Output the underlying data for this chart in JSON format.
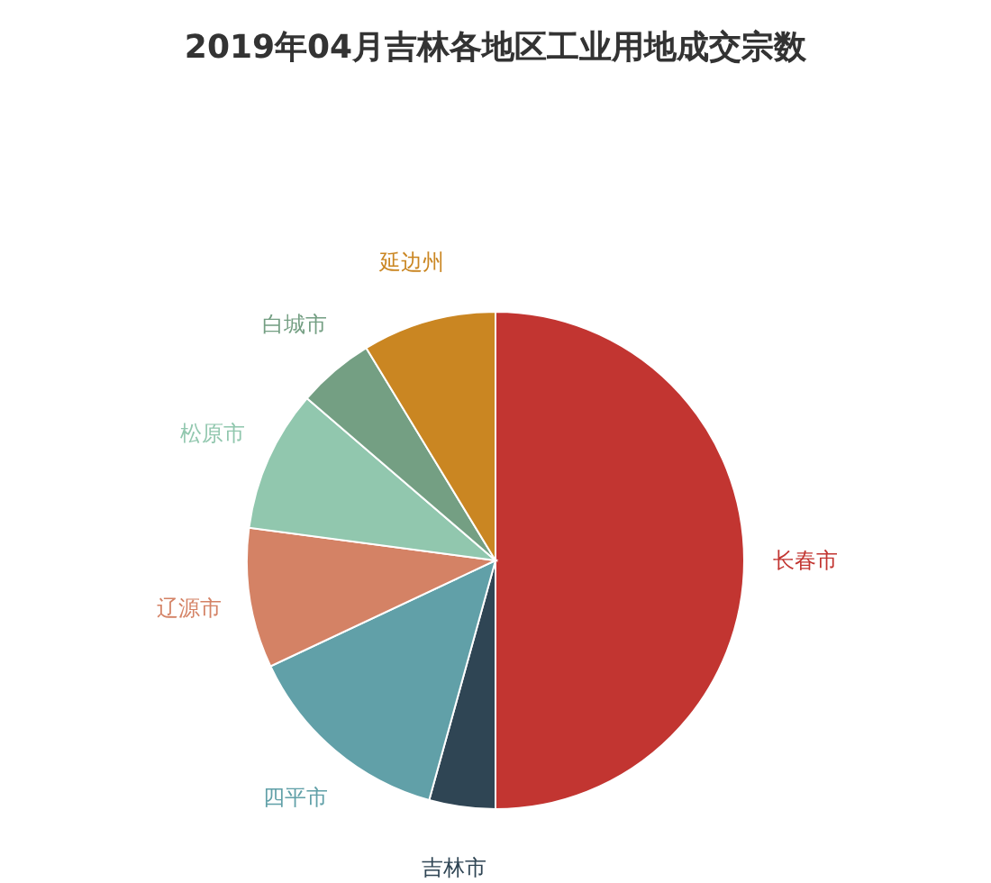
{
  "chart_data": {
    "type": "pie",
    "title": "2019年04月吉林各地区工业用地成交宗数",
    "categories": [
      "长春市",
      "吉林市",
      "四平市",
      "辽源市",
      "松原市",
      "白城市",
      "延边州"
    ],
    "values": [
      50,
      4.3,
      13.7,
      9.1,
      9.2,
      5,
      8.7
    ],
    "colors": [
      "#c23531",
      "#2f4554",
      "#61a0a8",
      "#d48265",
      "#91c7ae",
      "#749f83",
      "#ca8622"
    ]
  }
}
